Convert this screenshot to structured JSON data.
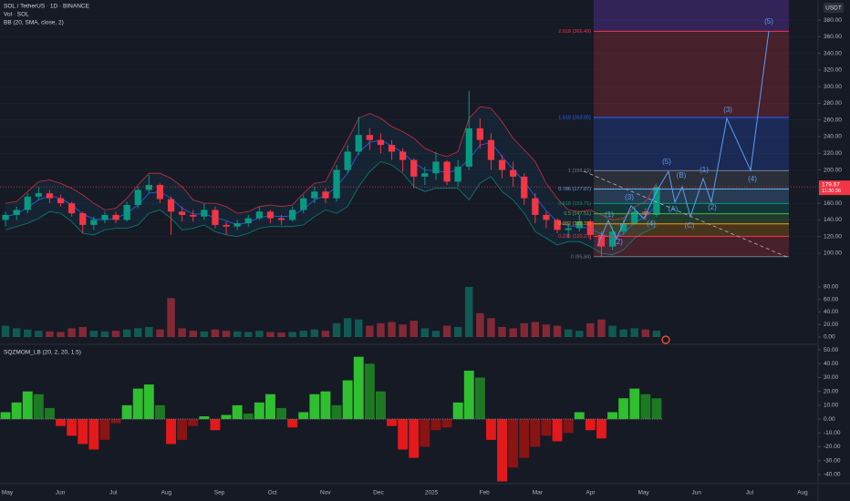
{
  "chart_data": [
    {
      "type": "candlestick",
      "title": "SOL / TetherUS · 1D · BINANCE",
      "indicator": "BB (20, SMA, close, 2)",
      "unit": "USDT",
      "countdown": "11:30:36",
      "open": [
        140,
        146,
        152,
        168,
        172,
        166,
        160,
        148,
        134,
        140,
        146,
        140,
        158,
        176,
        182,
        165,
        150,
        146,
        144,
        152,
        134,
        132,
        136,
        142,
        150,
        142,
        140,
        152,
        166,
        174,
        166,
        200,
        222,
        242,
        236,
        230,
        222,
        212,
        192,
        196,
        210,
        186,
        204,
        250,
        236,
        212,
        200,
        192,
        166,
        146,
        140,
        128,
        130,
        138,
        122,
        108,
        126,
        136,
        150,
        146
      ],
      "high": [
        150,
        156,
        172,
        180,
        176,
        170,
        162,
        150,
        144,
        150,
        150,
        162,
        180,
        194,
        184,
        168,
        156,
        152,
        160,
        156,
        138,
        140,
        146,
        156,
        152,
        146,
        156,
        170,
        180,
        178,
        206,
        230,
        264,
        250,
        244,
        236,
        226,
        214,
        204,
        222,
        212,
        212,
        295,
        262,
        244,
        218,
        210,
        196,
        172,
        150,
        142,
        136,
        146,
        140,
        126,
        132,
        140,
        156,
        154,
        182
      ],
      "low": [
        132,
        140,
        148,
        164,
        160,
        156,
        144,
        124,
        128,
        136,
        136,
        138,
        154,
        172,
        160,
        122,
        138,
        138,
        140,
        130,
        122,
        128,
        132,
        140,
        136,
        134,
        138,
        148,
        160,
        160,
        162,
        196,
        218,
        224,
        220,
        212,
        198,
        178,
        182,
        188,
        182,
        180,
        200,
        226,
        200,
        190,
        180,
        158,
        136,
        130,
        124,
        118,
        126,
        116,
        96,
        104,
        122,
        134,
        140,
        144
      ],
      "close": [
        146,
        152,
        168,
        172,
        166,
        160,
        148,
        134,
        140,
        146,
        140,
        158,
        176,
        182,
        165,
        150,
        146,
        144,
        152,
        134,
        132,
        136,
        142,
        150,
        142,
        140,
        152,
        166,
        174,
        166,
        200,
        222,
        242,
        236,
        230,
        222,
        212,
        192,
        196,
        210,
        186,
        204,
        250,
        236,
        212,
        200,
        192,
        166,
        146,
        140,
        128,
        130,
        138,
        122,
        108,
        126,
        136,
        150,
        146,
        179.67
      ],
      "bb_upper": [
        160,
        162,
        174,
        186,
        188,
        184,
        178,
        170,
        160,
        152,
        154,
        166,
        182,
        196,
        196,
        190,
        180,
        164,
        160,
        160,
        156,
        148,
        150,
        156,
        158,
        156,
        158,
        172,
        184,
        186,
        212,
        236,
        262,
        268,
        262,
        252,
        246,
        238,
        226,
        220,
        216,
        222,
        262,
        276,
        274,
        258,
        238,
        224,
        210,
        184,
        166,
        152,
        150,
        152,
        146,
        140,
        142,
        156,
        162,
        184
      ],
      "bb_basis": [
        144,
        147,
        155,
        164,
        169,
        166,
        158,
        147,
        141,
        140,
        142,
        148,
        158,
        172,
        174,
        166,
        154,
        147,
        147,
        143,
        139,
        134,
        137,
        143,
        145,
        144,
        145,
        153,
        164,
        169,
        180,
        196,
        221,
        233,
        236,
        229,
        221,
        209,
        200,
        199,
        197,
        200,
        213,
        230,
        233,
        216,
        201,
        186,
        168,
        151,
        138,
        133,
        132,
        130,
        123,
        119,
        123,
        137,
        144,
        158
      ],
      "bb_lower": [
        128,
        132,
        136,
        142,
        150,
        148,
        138,
        124,
        122,
        128,
        130,
        130,
        134,
        148,
        152,
        142,
        128,
        130,
        134,
        126,
        122,
        120,
        124,
        130,
        132,
        132,
        132,
        134,
        144,
        152,
        148,
        156,
        180,
        198,
        210,
        206,
        196,
        180,
        174,
        178,
        178,
        178,
        164,
        184,
        192,
        174,
        164,
        148,
        126,
        118,
        110,
        114,
        114,
        108,
        100,
        98,
        104,
        118,
        126,
        132
      ],
      "ylim": [
        81.4,
        404.1
      ],
      "yticks": [
        {
          "value": 100,
          "label": "100.00"
        },
        {
          "value": 120,
          "label": "120.00"
        },
        {
          "value": 140,
          "label": "140.00"
        },
        {
          "value": 160,
          "label": "160.00"
        },
        {
          "value": 180,
          "label": "180.00"
        },
        {
          "value": 200,
          "label": "200.00"
        },
        {
          "value": 220,
          "label": "220.00"
        },
        {
          "value": 240,
          "label": "240.00"
        },
        {
          "value": 260,
          "label": "260.00"
        },
        {
          "value": 280,
          "label": "280.00"
        },
        {
          "value": 300,
          "label": "300.00"
        },
        {
          "value": 320,
          "label": "320.00"
        },
        {
          "value": 340,
          "label": "340.00"
        },
        {
          "value": 360,
          "label": "360.00"
        },
        {
          "value": 380,
          "label": "380.00"
        }
      ],
      "xticks": [
        "May",
        "Jun",
        "Jul",
        "Aug",
        "Sep",
        "Oct",
        "Nov",
        "Dec",
        "2025",
        "Feb",
        "Mar",
        "Apr",
        "May",
        "Jun",
        "Jul",
        "Aug"
      ],
      "fib_levels": [
        {
          "value": 366.49,
          "label": "2.618 (366.49)",
          "color": "#f23645"
        },
        {
          "value": 263.05,
          "label": "1.618 (263.05)",
          "color": "#2962ff"
        },
        {
          "value": 199.19,
          "label": "1 (199.19)",
          "color": "#787b86"
        },
        {
          "value": 177.07,
          "label": "0.786 (177.07)",
          "color": "#64b5f6"
        },
        {
          "value": 159.71,
          "label": "0.618 (159.71)",
          "color": "#089981"
        },
        {
          "value": 147.51,
          "label": "0.5 (147.51)",
          "color": "#4caf50"
        },
        {
          "value": 135.32,
          "label": "0.382 (135.32)",
          "color": "#ff9800"
        },
        {
          "value": 120.23,
          "label": "0.236 (120.23)",
          "color": "#f23645"
        },
        {
          "value": 95.84,
          "label": "0 (95.84)",
          "color": "#787b86"
        }
      ],
      "wave_labels": [
        "(1)",
        "(2)",
        "(3)",
        "(4)",
        "(5)",
        "(A)",
        "(B)",
        "(C)",
        "(1)",
        "(2)",
        "(3)",
        "(4)",
        "(5)"
      ],
      "up_color": "#089981",
      "down_color": "#f23645"
    },
    {
      "type": "bar",
      "title": "Vol · SOL",
      "values": [
        18,
        14,
        12,
        10,
        9,
        8,
        14,
        16,
        10,
        9,
        10,
        12,
        14,
        16,
        12,
        62,
        14,
        10,
        9,
        12,
        10,
        9,
        8,
        10,
        8,
        7,
        8,
        10,
        12,
        10,
        22,
        30,
        28,
        18,
        22,
        24,
        20,
        26,
        14,
        10,
        18,
        16,
        80,
        38,
        30,
        16,
        14,
        22,
        24,
        20,
        18,
        12,
        10,
        22,
        28,
        18,
        12,
        14,
        12,
        10
      ],
      "ylim": [
        0,
        90
      ],
      "yticks": [
        {
          "value": 0,
          "label": "0.00"
        },
        {
          "value": 20,
          "label": "20.00"
        },
        {
          "value": 40,
          "label": "40.00"
        },
        {
          "value": 60,
          "label": "60.00"
        },
        {
          "value": 80,
          "label": "80.00"
        }
      ]
    },
    {
      "type": "histogram",
      "title": "SQZMOM_LB (20, 2, 20, 1.5)",
      "values": [
        5,
        12,
        20,
        18,
        8,
        -5,
        -12,
        -18,
        -22,
        -15,
        -3,
        10,
        22,
        25,
        10,
        -18,
        -15,
        -5,
        2,
        -8,
        3,
        10,
        4,
        12,
        18,
        8,
        -6,
        5,
        18,
        20,
        10,
        28,
        45,
        40,
        20,
        -5,
        -22,
        -28,
        -20,
        -8,
        -6,
        12,
        35,
        30,
        -15,
        -45,
        -35,
        -28,
        -20,
        -12,
        -16,
        -10,
        5,
        -8,
        -14,
        5,
        15,
        22,
        18,
        15
      ],
      "ylim": [
        -46,
        54
      ],
      "yticks": [
        {
          "value": -40,
          "label": "-40.00"
        },
        {
          "value": -30,
          "label": "-30.00"
        },
        {
          "value": -20,
          "label": "-20.00"
        },
        {
          "value": -10,
          "label": "-10.00"
        },
        {
          "value": 0,
          "label": "0.00"
        },
        {
          "value": 10,
          "label": "10.00"
        },
        {
          "value": 20,
          "label": "20.00"
        },
        {
          "value": 30,
          "label": "30.00"
        },
        {
          "value": 40,
          "label": "40.00"
        },
        {
          "value": 50,
          "label": "50.00"
        }
      ],
      "colors": {
        "pos_up": "#2fbf2f",
        "pos_down": "#1d7a22",
        "neg_down": "#e3191b",
        "neg_up": "#8a1414"
      }
    }
  ]
}
